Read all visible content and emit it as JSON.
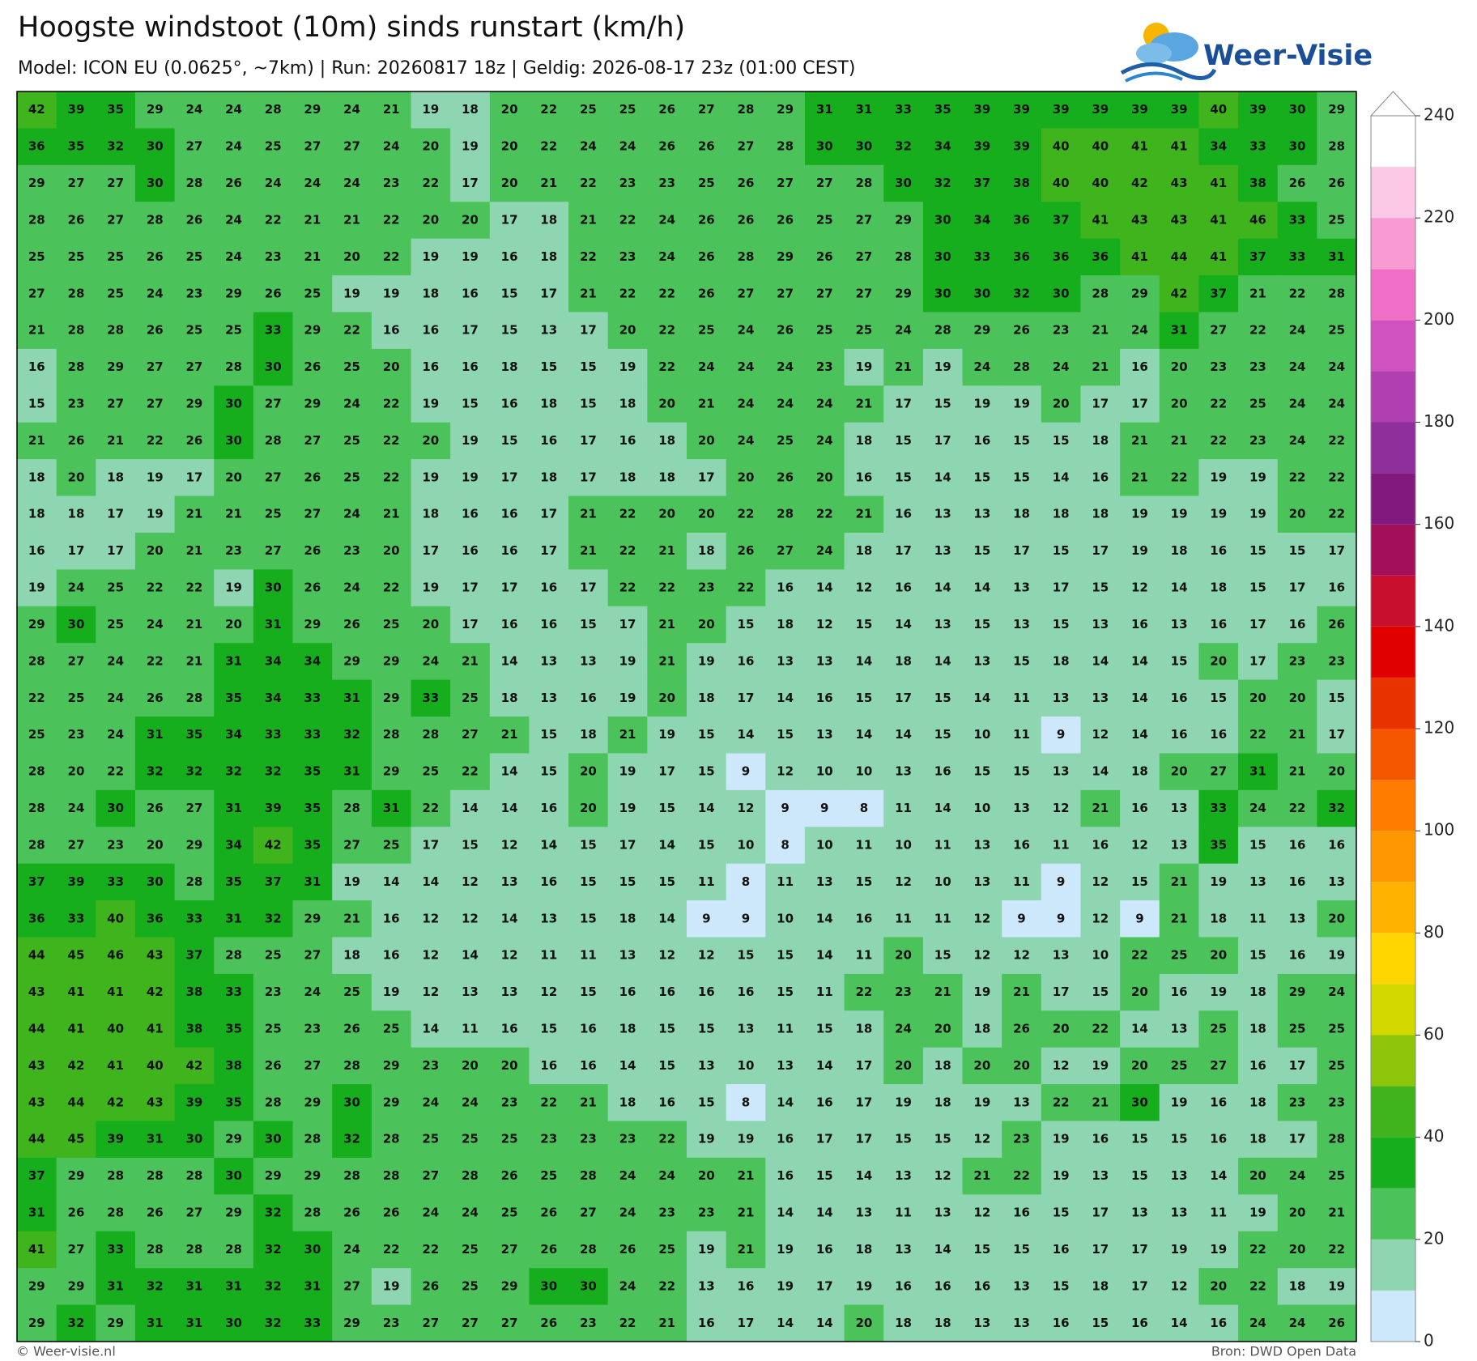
{
  "header": {
    "title": "Hoogste windstoot (10m) sinds runstart (km/h)",
    "subtitle": "Model: ICON EU (0.0625°, ~7km)  |  Run: 20260817 18z  |  Geldig: 2026-08-17 23z (01:00 CEST)",
    "brand": "Weer-Visie"
  },
  "footer": {
    "left": "© Weer-visie.nl",
    "right": "Bron: DWD Open Data"
  },
  "colorbar": {
    "lim": [
      0,
      240
    ],
    "ticks": [
      0,
      20,
      40,
      60,
      80,
      100,
      120,
      140,
      160,
      180,
      200,
      220,
      240
    ],
    "colors": [
      "#cde7fb",
      "#8ed6b2",
      "#4cc35a",
      "#17ae1e",
      "#40b41c",
      "#8cc50a",
      "#d2d800",
      "#ffd600",
      "#ffb300",
      "#ff9800",
      "#ff7c00",
      "#f55600",
      "#e83200",
      "#e10000",
      "#c8102e",
      "#a3105a",
      "#82197f",
      "#8e2f9c",
      "#b03fb0",
      "#d052c0",
      "#f06ec6",
      "#f79bd2",
      "#fbc9e6",
      "#ffffff"
    ]
  },
  "grid": {
    "rows": [
      [
        42,
        39,
        35,
        29,
        24,
        24,
        28,
        29,
        24,
        21,
        19,
        18,
        20,
        22,
        25,
        25,
        26,
        27,
        28,
        29,
        31,
        31,
        33,
        35,
        39,
        39,
        39,
        39,
        39,
        39,
        40,
        39,
        30,
        29
      ],
      [
        36,
        35,
        32,
        30,
        27,
        24,
        25,
        27,
        27,
        24,
        20,
        19,
        20,
        22,
        24,
        24,
        26,
        26,
        27,
        28,
        30,
        30,
        32,
        34,
        39,
        39,
        40,
        40,
        41,
        41,
        34,
        33,
        30,
        28
      ],
      [
        29,
        27,
        27,
        30,
        28,
        26,
        24,
        24,
        24,
        23,
        22,
        17,
        20,
        21,
        22,
        23,
        23,
        25,
        26,
        27,
        27,
        28,
        30,
        32,
        37,
        38,
        40,
        40,
        42,
        43,
        41,
        38,
        26,
        26
      ],
      [
        28,
        26,
        27,
        28,
        26,
        24,
        22,
        21,
        21,
        22,
        20,
        20,
        17,
        18,
        21,
        22,
        24,
        26,
        26,
        26,
        25,
        27,
        29,
        30,
        34,
        36,
        37,
        41,
        43,
        43,
        41,
        46,
        33,
        25
      ],
      [
        25,
        25,
        25,
        26,
        25,
        24,
        23,
        21,
        20,
        22,
        19,
        19,
        16,
        18,
        22,
        23,
        24,
        26,
        28,
        29,
        26,
        27,
        28,
        30,
        33,
        36,
        36,
        36,
        41,
        44,
        41,
        37,
        33,
        31
      ],
      [
        27,
        28,
        25,
        24,
        23,
        29,
        26,
        25,
        19,
        19,
        18,
        16,
        15,
        17,
        21,
        22,
        22,
        26,
        27,
        27,
        27,
        27,
        29,
        30,
        30,
        32,
        30,
        28,
        29,
        42,
        37,
        21,
        22,
        28
      ],
      [
        21,
        28,
        28,
        26,
        25,
        25,
        33,
        29,
        22,
        16,
        16,
        17,
        15,
        13,
        17,
        20,
        22,
        25,
        24,
        26,
        25,
        25,
        24,
        28,
        29,
        26,
        23,
        21,
        24,
        31,
        27,
        22,
        24,
        25
      ],
      [
        16,
        28,
        29,
        27,
        27,
        28,
        30,
        26,
        25,
        20,
        16,
        16,
        18,
        15,
        15,
        19,
        22,
        24,
        24,
        24,
        23,
        19,
        21,
        19,
        24,
        28,
        24,
        21,
        16,
        20,
        23,
        23,
        24,
        24
      ],
      [
        15,
        23,
        27,
        27,
        29,
        30,
        27,
        29,
        24,
        22,
        19,
        15,
        16,
        18,
        15,
        18,
        20,
        21,
        24,
        24,
        24,
        21,
        17,
        15,
        19,
        19,
        20,
        17,
        17,
        20,
        22,
        25,
        24,
        24
      ],
      [
        21,
        26,
        21,
        22,
        26,
        30,
        28,
        27,
        25,
        22,
        20,
        19,
        15,
        16,
        17,
        16,
        18,
        20,
        24,
        25,
        24,
        18,
        15,
        17,
        16,
        15,
        15,
        18,
        21,
        21,
        22,
        23,
        24,
        22
      ],
      [
        18,
        20,
        18,
        19,
        17,
        20,
        27,
        26,
        25,
        22,
        19,
        19,
        17,
        18,
        17,
        18,
        18,
        17,
        20,
        26,
        20,
        16,
        15,
        14,
        15,
        15,
        14,
        16,
        21,
        22,
        19,
        19,
        22,
        22
      ],
      [
        18,
        18,
        17,
        19,
        21,
        21,
        25,
        27,
        24,
        21,
        18,
        16,
        16,
        17,
        21,
        22,
        20,
        20,
        22,
        28,
        22,
        21,
        16,
        13,
        13,
        18,
        18,
        18,
        19,
        19,
        19,
        19,
        20,
        22
      ],
      [
        16,
        17,
        17,
        20,
        21,
        23,
        27,
        26,
        23,
        20,
        17,
        16,
        16,
        17,
        21,
        22,
        21,
        18,
        26,
        27,
        24,
        18,
        17,
        13,
        15,
        17,
        15,
        17,
        19,
        18,
        16,
        15,
        15,
        17
      ],
      [
        19,
        24,
        25,
        22,
        22,
        19,
        30,
        26,
        24,
        22,
        19,
        17,
        17,
        16,
        17,
        22,
        22,
        23,
        22,
        16,
        14,
        12,
        16,
        14,
        14,
        13,
        17,
        15,
        12,
        14,
        18,
        15,
        17,
        16
      ],
      [
        29,
        30,
        25,
        24,
        21,
        20,
        31,
        29,
        26,
        25,
        20,
        17,
        16,
        16,
        15,
        17,
        21,
        20,
        15,
        18,
        12,
        15,
        14,
        13,
        15,
        13,
        15,
        13,
        16,
        13,
        16,
        17,
        16,
        26
      ],
      [
        28,
        27,
        24,
        22,
        21,
        31,
        34,
        34,
        29,
        29,
        24,
        21,
        14,
        13,
        13,
        19,
        21,
        19,
        16,
        13,
        13,
        14,
        18,
        14,
        13,
        15,
        18,
        14,
        14,
        15,
        20,
        17,
        23,
        23
      ],
      [
        22,
        25,
        24,
        26,
        28,
        35,
        34,
        33,
        31,
        29,
        33,
        25,
        18,
        13,
        16,
        19,
        20,
        18,
        17,
        14,
        16,
        15,
        17,
        15,
        14,
        11,
        13,
        13,
        14,
        16,
        15,
        20,
        20,
        15
      ],
      [
        25,
        23,
        24,
        31,
        35,
        34,
        33,
        33,
        32,
        28,
        28,
        27,
        21,
        15,
        18,
        21,
        19,
        15,
        14,
        15,
        13,
        14,
        14,
        15,
        10,
        11,
        9,
        12,
        14,
        16,
        16,
        22,
        21,
        17
      ],
      [
        28,
        20,
        22,
        32,
        32,
        32,
        32,
        35,
        31,
        29,
        25,
        22,
        14,
        15,
        20,
        19,
        17,
        15,
        9,
        12,
        10,
        10,
        13,
        16,
        15,
        15,
        13,
        14,
        18,
        20,
        27,
        31,
        21,
        20
      ],
      [
        28,
        24,
        30,
        26,
        27,
        31,
        39,
        35,
        28,
        31,
        22,
        14,
        14,
        16,
        20,
        19,
        15,
        14,
        12,
        9,
        9,
        8,
        11,
        14,
        10,
        13,
        12,
        21,
        16,
        13,
        33,
        24,
        22,
        32
      ],
      [
        28,
        27,
        23,
        20,
        29,
        34,
        42,
        35,
        27,
        25,
        17,
        15,
        12,
        14,
        15,
        17,
        14,
        15,
        10,
        8,
        10,
        11,
        10,
        11,
        13,
        16,
        11,
        16,
        12,
        13,
        35,
        15,
        16,
        16
      ],
      [
        37,
        39,
        33,
        30,
        28,
        35,
        37,
        31,
        19,
        14,
        14,
        12,
        13,
        16,
        15,
        15,
        15,
        11,
        8,
        11,
        13,
        15,
        12,
        10,
        13,
        11,
        9,
        12,
        15,
        21,
        19,
        13,
        16,
        13
      ],
      [
        36,
        33,
        40,
        36,
        33,
        31,
        32,
        29,
        21,
        16,
        12,
        12,
        14,
        13,
        15,
        18,
        14,
        9,
        9,
        10,
        14,
        16,
        11,
        11,
        12,
        9,
        9,
        12,
        9,
        21,
        18,
        11,
        13,
        20
      ],
      [
        44,
        45,
        46,
        43,
        37,
        28,
        25,
        27,
        18,
        16,
        12,
        14,
        12,
        11,
        11,
        13,
        12,
        12,
        15,
        15,
        14,
        11,
        20,
        15,
        12,
        12,
        13,
        10,
        22,
        25,
        20,
        15,
        16,
        19
      ],
      [
        43,
        41,
        41,
        42,
        38,
        33,
        23,
        24,
        25,
        19,
        12,
        13,
        13,
        12,
        15,
        16,
        16,
        16,
        16,
        15,
        11,
        22,
        23,
        21,
        19,
        21,
        17,
        15,
        20,
        16,
        19,
        18,
        29,
        24
      ],
      [
        44,
        41,
        40,
        41,
        38,
        35,
        25,
        23,
        26,
        25,
        14,
        11,
        16,
        15,
        16,
        18,
        15,
        15,
        13,
        11,
        15,
        18,
        24,
        20,
        18,
        26,
        20,
        22,
        14,
        13,
        25,
        18,
        25,
        25
      ],
      [
        43,
        42,
        41,
        40,
        42,
        38,
        26,
        27,
        28,
        29,
        23,
        20,
        20,
        16,
        16,
        14,
        15,
        13,
        10,
        13,
        14,
        17,
        20,
        18,
        20,
        20,
        12,
        19,
        20,
        25,
        27,
        16,
        17,
        25
      ],
      [
        43,
        44,
        42,
        43,
        39,
        35,
        28,
        29,
        30,
        29,
        24,
        24,
        23,
        22,
        21,
        18,
        16,
        15,
        8,
        14,
        16,
        17,
        19,
        18,
        19,
        13,
        22,
        21,
        30,
        19,
        16,
        18,
        23,
        23
      ],
      [
        44,
        45,
        39,
        31,
        30,
        29,
        30,
        28,
        32,
        28,
        25,
        25,
        25,
        23,
        23,
        23,
        22,
        19,
        19,
        16,
        17,
        17,
        15,
        15,
        12,
        23,
        19,
        16,
        15,
        15,
        16,
        18,
        17,
        28
      ],
      [
        37,
        29,
        28,
        28,
        28,
        30,
        29,
        29,
        28,
        28,
        27,
        28,
        26,
        25,
        28,
        24,
        24,
        20,
        21,
        16,
        15,
        14,
        13,
        12,
        21,
        22,
        19,
        13,
        15,
        13,
        14,
        20,
        24,
        25
      ],
      [
        31,
        26,
        28,
        26,
        27,
        29,
        32,
        28,
        26,
        26,
        24,
        24,
        25,
        26,
        27,
        24,
        23,
        23,
        21,
        14,
        14,
        13,
        11,
        13,
        12,
        16,
        15,
        17,
        13,
        13,
        11,
        19,
        20,
        21
      ],
      [
        41,
        27,
        33,
        28,
        28,
        28,
        32,
        30,
        24,
        22,
        22,
        25,
        27,
        26,
        28,
        26,
        25,
        19,
        21,
        19,
        16,
        18,
        13,
        14,
        15,
        15,
        16,
        17,
        17,
        19,
        19,
        22,
        20,
        22
      ],
      [
        29,
        29,
        31,
        32,
        31,
        31,
        32,
        31,
        27,
        19,
        26,
        25,
        29,
        30,
        30,
        24,
        22,
        13,
        16,
        19,
        17,
        19,
        16,
        16,
        16,
        13,
        15,
        18,
        17,
        12,
        20,
        22,
        18,
        19
      ],
      [
        29,
        32,
        29,
        31,
        31,
        30,
        32,
        33,
        29,
        23,
        27,
        27,
        27,
        26,
        23,
        22,
        21,
        16,
        17,
        14,
        14,
        20,
        18,
        18,
        13,
        13,
        16,
        15,
        16,
        14,
        16,
        24,
        24,
        26
      ]
    ]
  }
}
